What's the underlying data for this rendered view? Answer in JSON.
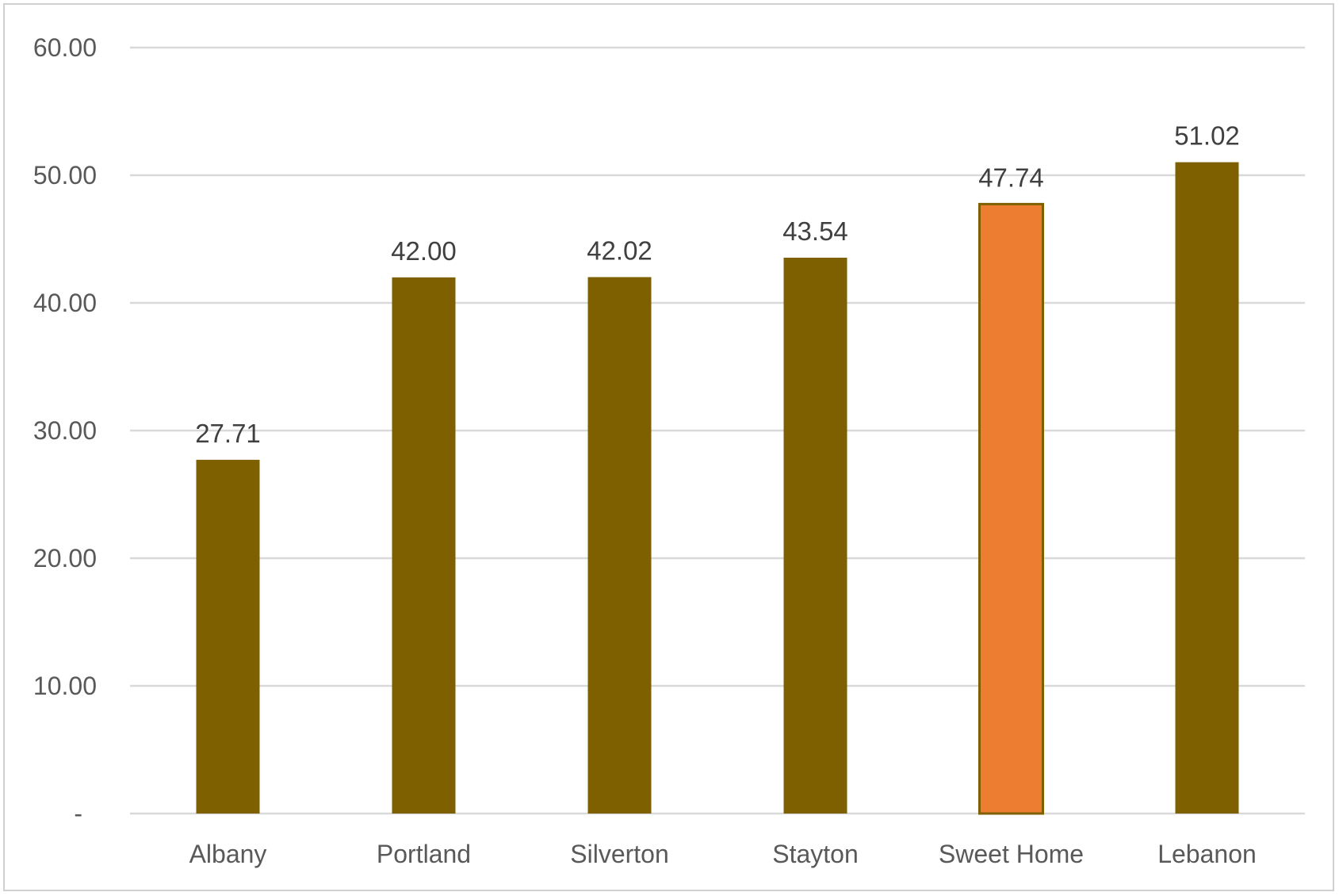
{
  "chart_data": {
    "type": "bar",
    "title": "",
    "xlabel": "",
    "ylabel": "",
    "categories": [
      "Albany",
      "Portland",
      "Silverton",
      "Stayton",
      "Sweet Home",
      "Lebanon"
    ],
    "values": [
      27.71,
      42.0,
      42.02,
      43.54,
      47.74,
      51.02
    ],
    "data_labels": [
      "27.71",
      "42.00",
      "42.02",
      "43.54",
      "47.74",
      "51.02"
    ],
    "highlight_category": "Sweet Home",
    "ylim": [
      0,
      60
    ],
    "yticks": [
      0,
      10,
      20,
      30,
      40,
      50,
      60
    ],
    "ytick_labels": [
      "-",
      "10.00",
      "20.00",
      "30.00",
      "40.00",
      "50.00",
      "60.00"
    ],
    "grid": true,
    "legend": "none",
    "colors": {
      "bar": "#7f6000",
      "highlight": "#ed7d31",
      "highlight_border": "#7f6000",
      "grid": "#d9d9d9",
      "text": "#595959"
    }
  }
}
